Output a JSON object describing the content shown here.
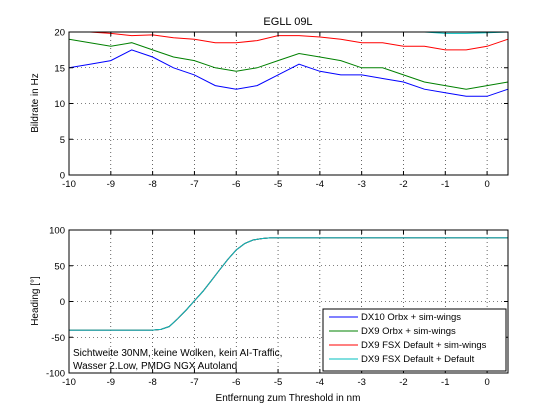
{
  "figure": {
    "xlabel": "Entfernung zum Threshold in nm"
  },
  "legend": {
    "entries": [
      {
        "label": "DX10 Orbx + sim-wings",
        "color": "#0000ff"
      },
      {
        "label": "DX9 Orbx + sim-wings",
        "color": "#008000"
      },
      {
        "label": "DX9 FSX Default + sim-wings",
        "color": "#ff0000"
      },
      {
        "label": "DX9 FSX Default + Default",
        "color": "#00bfbf"
      }
    ]
  },
  "annotation": {
    "line1": "Sichtweite 30NM, keine Wolken, kein AI-Traffic,",
    "line2": "Wasser 2.Low, PMDG NGX Autoland"
  },
  "chart_data": [
    {
      "type": "line",
      "title": "EGLL 09L",
      "ylabel": "Bildrate in Hz",
      "xlim": [
        -10,
        0.5
      ],
      "ylim": [
        0,
        20
      ],
      "grid": true,
      "xticks": [
        "-10",
        "-9",
        "-8",
        "-7",
        "-6",
        "-5",
        "-4",
        "-3",
        "-2",
        "-1",
        "0"
      ],
      "yticks": [
        "0",
        "5",
        "10",
        "15",
        "20"
      ],
      "x": [
        -10,
        -9.5,
        -9,
        -8.5,
        -8,
        -7.5,
        -7,
        -6.5,
        -6,
        -5.5,
        -5,
        -4.5,
        -4,
        -3.5,
        -3,
        -2.5,
        -2,
        -1.5,
        -1,
        -0.5,
        0,
        0.5
      ],
      "series": [
        {
          "name": "DX10 Orbx + sim-wings",
          "color": "#0000ff",
          "values": [
            15,
            15.5,
            16,
            17.5,
            16.5,
            15,
            14,
            12.5,
            12,
            12.5,
            14,
            15.5,
            14.5,
            14,
            14,
            13.5,
            13,
            12,
            11.5,
            11,
            11,
            12
          ]
        },
        {
          "name": "DX9 Orbx + sim-wings",
          "color": "#008000",
          "values": [
            19,
            18.5,
            18,
            18.5,
            17.5,
            16.5,
            16,
            15,
            14.5,
            15,
            16,
            17,
            16.5,
            16,
            15,
            15,
            14,
            13,
            12.5,
            12,
            12.5,
            13
          ]
        },
        {
          "name": "DX9 FSX Default + sim-wings",
          "color": "#ff0000",
          "values": [
            20,
            20,
            19.8,
            19.5,
            19.6,
            19.2,
            19,
            18.5,
            18.5,
            18.8,
            19.5,
            19.5,
            19.3,
            19,
            18.5,
            18.5,
            18,
            18,
            17.5,
            17.5,
            18,
            19
          ]
        },
        {
          "name": "DX9 FSX Default + Default",
          "color": "#00bfbf",
          "values": [
            20,
            20,
            20,
            20,
            20,
            20,
            20,
            20,
            20,
            20,
            20,
            20,
            20,
            20,
            20,
            20,
            20,
            20,
            19.8,
            19.8,
            19.9,
            20
          ]
        }
      ]
    },
    {
      "type": "line",
      "title": "",
      "ylabel": "Heading [°]",
      "xlim": [
        -10,
        0.5
      ],
      "ylim": [
        -100,
        100
      ],
      "grid": true,
      "legend_position": "bottom-right",
      "xticks": [
        "-10",
        "-9",
        "-8",
        "-7",
        "-6",
        "-5",
        "-4",
        "-3",
        "-2",
        "-1",
        "0"
      ],
      "yticks": [
        "-100",
        "-50",
        "0",
        "50",
        "100"
      ],
      "x": [
        -10,
        -9,
        -8,
        -7.8,
        -7.6,
        -7.4,
        -7.2,
        -7,
        -6.8,
        -6.6,
        -6.4,
        -6.2,
        -6,
        -5.8,
        -5.6,
        -5.4,
        -5.2,
        -5,
        -4,
        -3,
        -2,
        -1,
        0,
        0.5
      ],
      "series": [
        {
          "name": "DX10 Orbx + sim-wings",
          "color": "#0000ff",
          "values": [
            -40,
            -40,
            -40,
            -39,
            -35,
            -24,
            -12,
            1,
            14,
            29,
            44,
            59,
            72,
            81,
            86,
            88,
            89,
            89,
            89,
            89,
            89,
            89,
            89,
            89
          ]
        },
        {
          "name": "DX9 Orbx + sim-wings",
          "color": "#008000",
          "values": [
            -40,
            -40,
            -40,
            -39,
            -35,
            -24,
            -12,
            1,
            14,
            29,
            44,
            59,
            72,
            81,
            86,
            88,
            89,
            89,
            89,
            89,
            89,
            89,
            89,
            89
          ]
        },
        {
          "name": "DX9 FSX Default + sim-wings",
          "color": "#ff0000",
          "values": [
            -40,
            -40,
            -40,
            -39,
            -35,
            -24,
            -12,
            1,
            14,
            29,
            44,
            59,
            72,
            81,
            86,
            88,
            89,
            89,
            89,
            89,
            89,
            89,
            89,
            89
          ]
        },
        {
          "name": "DX9 FSX Default + Default",
          "color": "#00bfbf",
          "values": [
            -40,
            -40,
            -40,
            -39,
            -35,
            -24,
            -12,
            1,
            14,
            29,
            44,
            59,
            72,
            81,
            86,
            88,
            89,
            89,
            89,
            89,
            89,
            89,
            89,
            89
          ]
        }
      ]
    }
  ]
}
